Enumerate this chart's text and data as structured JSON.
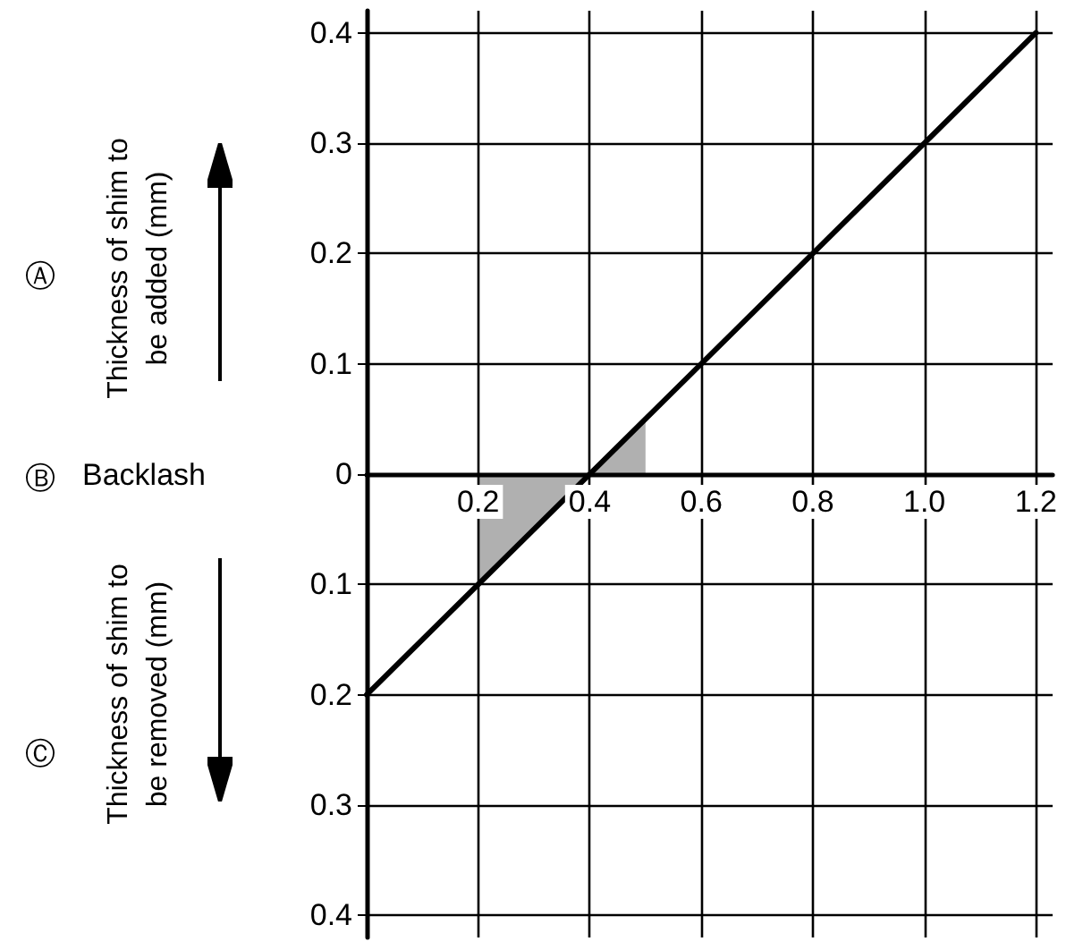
{
  "chart_data": {
    "type": "line",
    "series": [
      {
        "color": "#000000",
        "x": [
          0,
          1.2
        ],
        "values": [
          -0.2,
          0.4
        ]
      },
      {
        "type": "area",
        "color": "#b0b0b0",
        "x": [
          0.2,
          0.4,
          0.5
        ],
        "values": [
          -0.1,
          0,
          0.05
        ]
      }
    ],
    "xlim": [
      0,
      1.23
    ],
    "ylim": [
      -0.42,
      0.42
    ],
    "xticks": [
      0.2,
      0.4,
      0.6,
      0.8,
      {
        "value": 1,
        "label": "1.0"
      },
      1.2
    ],
    "yticks": [
      {
        "value": -0.4,
        "label": "0.4"
      },
      {
        "value": -0.3,
        "label": "0.3"
      },
      {
        "value": -0.2,
        "label": "0.2"
      },
      {
        "value": -0.1,
        "label": "0.1"
      },
      0,
      0.1,
      0.2,
      0.3,
      0.4
    ],
    "grid": true,
    "marker": "none",
    "line_style": "solid",
    "annotations": [
      "Ⓐ",
      "Thickness of shim to be added (mm)",
      "Ⓑ",
      "Backlash",
      "Ⓒ",
      "Thickness of shim to be removed (mm)"
    ]
  }
}
